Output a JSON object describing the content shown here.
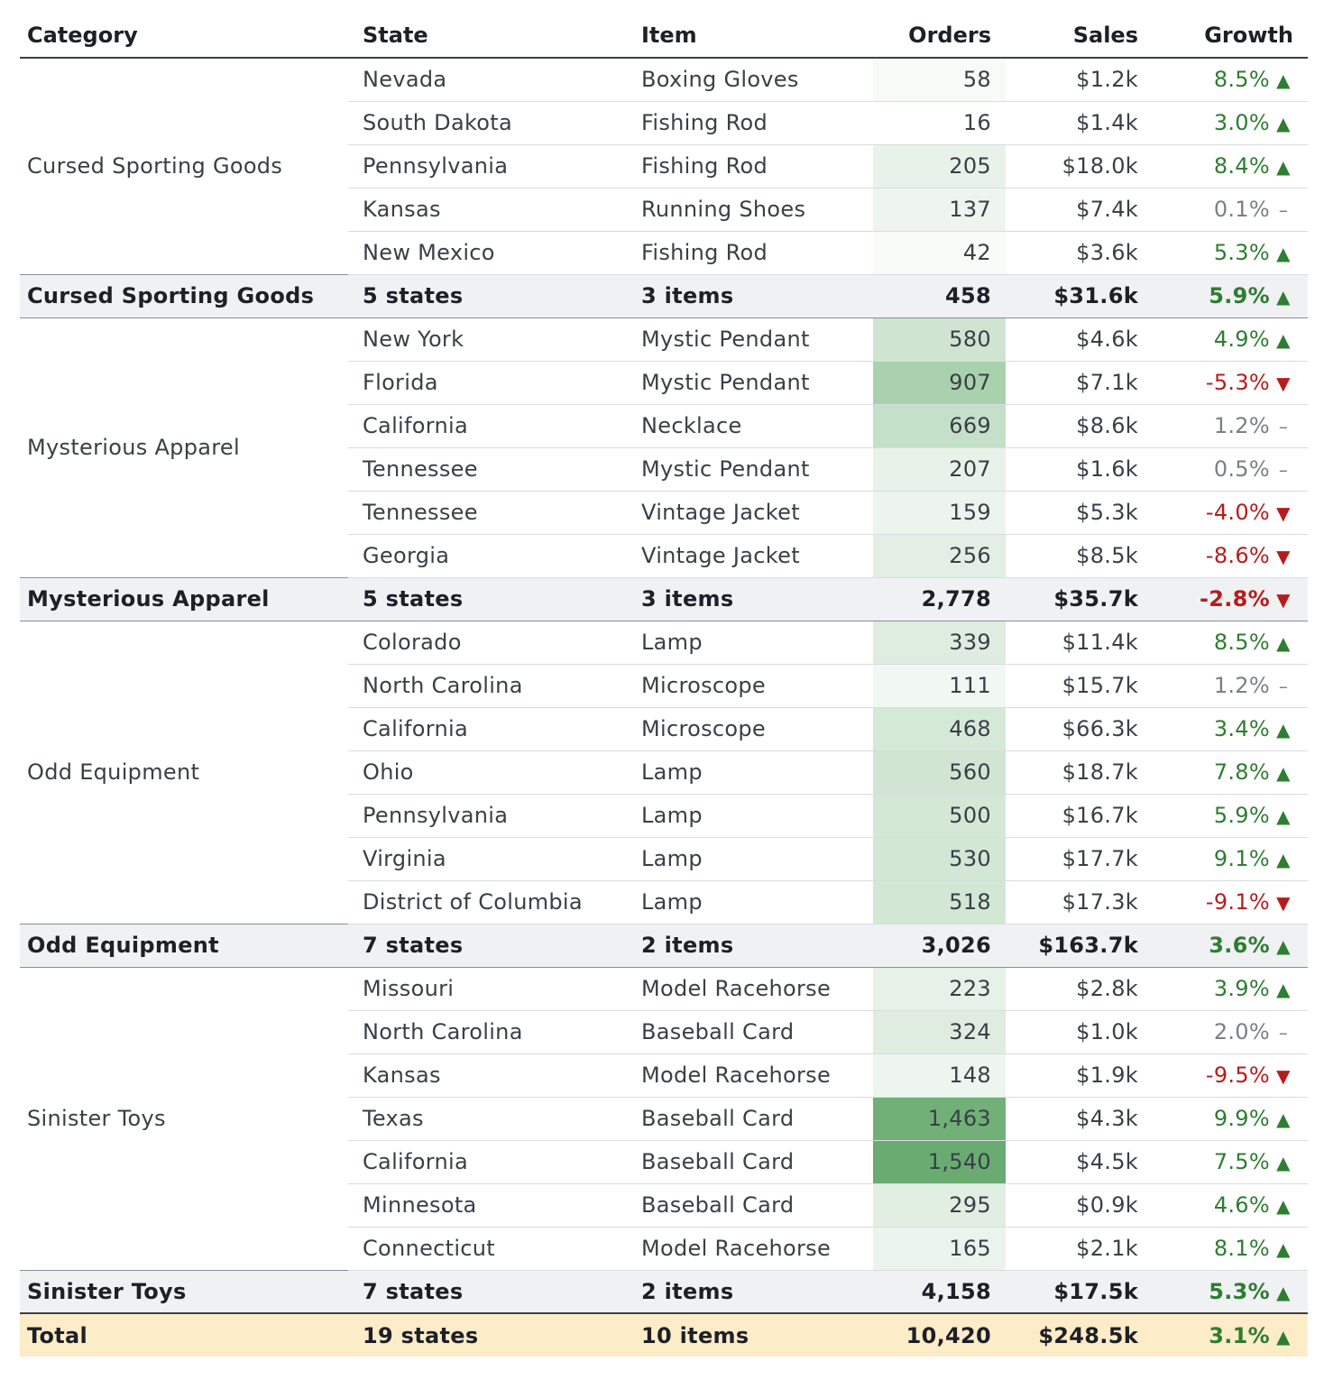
{
  "headers": {
    "category": "Category",
    "state": "State",
    "item": "Item",
    "orders": "Orders",
    "sales": "Sales",
    "growth": "Growth"
  },
  "groups": [
    {
      "category": "Cursed Sporting Goods",
      "rows": [
        {
          "state": "Nevada",
          "item": "Boxing Gloves",
          "orders": "58",
          "sales": "$1.2k",
          "growth": "8.5%",
          "trend": "up",
          "shade": "#f7faf7"
        },
        {
          "state": "South Dakota",
          "item": "Fishing Rod",
          "orders": "16",
          "sales": "$1.4k",
          "growth": "3.0%",
          "trend": "up",
          "shade": "#ffffff"
        },
        {
          "state": "Pennsylvania",
          "item": "Fishing Rod",
          "orders": "205",
          "sales": "$18.0k",
          "growth": "8.4%",
          "trend": "up",
          "shade": "#e8f2e9"
        },
        {
          "state": "Kansas",
          "item": "Running Shoes",
          "orders": "137",
          "sales": "$7.4k",
          "growth": "0.1%",
          "trend": "flat",
          "shade": "#eef5ef"
        },
        {
          "state": "New Mexico",
          "item": "Fishing Rod",
          "orders": "42",
          "sales": "$3.6k",
          "growth": "5.3%",
          "trend": "up",
          "shade": "#f8fbf8"
        }
      ],
      "subtotal": {
        "label": "Cursed Sporting Goods",
        "states": "5 states",
        "items": "3 items",
        "orders": "458",
        "sales": "$31.6k",
        "growth": "5.9%",
        "trend": "up"
      }
    },
    {
      "category": "Mysterious Apparel",
      "rows": [
        {
          "state": "New York",
          "item": "Mystic Pendant",
          "orders": "580",
          "sales": "$4.6k",
          "growth": "4.9%",
          "trend": "up",
          "shade": "#cfe5d1"
        },
        {
          "state": "Florida",
          "item": "Mystic Pendant",
          "orders": "907",
          "sales": "$7.1k",
          "growth": "-5.3%",
          "trend": "down",
          "shade": "#a9d1ae"
        },
        {
          "state": "California",
          "item": "Necklace",
          "orders": "669",
          "sales": "$8.6k",
          "growth": "1.2%",
          "trend": "flat",
          "shade": "#c5e0c8"
        },
        {
          "state": "Tennessee",
          "item": "Mystic Pendant",
          "orders": "207",
          "sales": "$1.6k",
          "growth": "0.5%",
          "trend": "flat",
          "shade": "#e8f2e9"
        },
        {
          "state": "Tennessee",
          "item": "Vintage Jacket",
          "orders": "159",
          "sales": "$5.3k",
          "growth": "-4.0%",
          "trend": "down",
          "shade": "#ecf4ed"
        },
        {
          "state": "Georgia",
          "item": "Vintage Jacket",
          "orders": "256",
          "sales": "$8.5k",
          "growth": "-8.6%",
          "trend": "down",
          "shade": "#e3efe4"
        }
      ],
      "subtotal": {
        "label": "Mysterious Apparel",
        "states": "5 states",
        "items": "3 items",
        "orders": "2,778",
        "sales": "$35.7k",
        "growth": "-2.8%",
        "trend": "down"
      }
    },
    {
      "category": "Odd Equipment",
      "rows": [
        {
          "state": "Colorado",
          "item": "Lamp",
          "orders": "339",
          "sales": "$11.4k",
          "growth": "8.5%",
          "trend": "up",
          "shade": "#deede0"
        },
        {
          "state": "North Carolina",
          "item": "Microscope",
          "orders": "111",
          "sales": "$15.7k",
          "growth": "1.2%",
          "trend": "flat",
          "shade": "#f1f7f2"
        },
        {
          "state": "California",
          "item": "Microscope",
          "orders": "468",
          "sales": "$66.3k",
          "growth": "3.4%",
          "trend": "up",
          "shade": "#d5e9d7"
        },
        {
          "state": "Ohio",
          "item": "Lamp",
          "orders": "560",
          "sales": "$18.7k",
          "growth": "7.8%",
          "trend": "up",
          "shade": "#d0e6d2"
        },
        {
          "state": "Pennsylvania",
          "item": "Lamp",
          "orders": "500",
          "sales": "$16.7k",
          "growth": "5.9%",
          "trend": "up",
          "shade": "#d3e8d5"
        },
        {
          "state": "Virginia",
          "item": "Lamp",
          "orders": "530",
          "sales": "$17.7k",
          "growth": "9.1%",
          "trend": "up",
          "shade": "#d2e7d4"
        },
        {
          "state": "District of Columbia",
          "item": "Lamp",
          "orders": "518",
          "sales": "$17.3k",
          "growth": "-9.1%",
          "trend": "down",
          "shade": "#d2e7d4"
        }
      ],
      "subtotal": {
        "label": "Odd Equipment",
        "states": "7 states",
        "items": "2 items",
        "orders": "3,026",
        "sales": "$163.7k",
        "growth": "3.6%",
        "trend": "up"
      }
    },
    {
      "category": "Sinister Toys",
      "rows": [
        {
          "state": "Missouri",
          "item": "Model Racehorse",
          "orders": "223",
          "sales": "$2.8k",
          "growth": "3.9%",
          "trend": "up",
          "shade": "#e6f1e7"
        },
        {
          "state": "North Carolina",
          "item": "Baseball Card",
          "orders": "324",
          "sales": "$1.0k",
          "growth": "2.0%",
          "trend": "flat",
          "shade": "#dfede1"
        },
        {
          "state": "Kansas",
          "item": "Model Racehorse",
          "orders": "148",
          "sales": "$1.9k",
          "growth": "-9.5%",
          "trend": "down",
          "shade": "#eef5ef"
        },
        {
          "state": "Texas",
          "item": "Baseball Card",
          "orders": "1,463",
          "sales": "$4.3k",
          "growth": "9.9%",
          "trend": "up",
          "shade": "#71b077"
        },
        {
          "state": "California",
          "item": "Baseball Card",
          "orders": "1,540",
          "sales": "$4.5k",
          "growth": "7.5%",
          "trend": "up",
          "shade": "#69ab70"
        },
        {
          "state": "Minnesota",
          "item": "Baseball Card",
          "orders": "295",
          "sales": "$0.9k",
          "growth": "4.6%",
          "trend": "up",
          "shade": "#e1eee2"
        },
        {
          "state": "Connecticut",
          "item": "Model Racehorse",
          "orders": "165",
          "sales": "$2.1k",
          "growth": "8.1%",
          "trend": "up",
          "shade": "#ebf4ec"
        }
      ],
      "subtotal": {
        "label": "Sinister Toys",
        "states": "7 states",
        "items": "2 items",
        "orders": "4,158",
        "sales": "$17.5k",
        "growth": "5.3%",
        "trend": "up"
      }
    }
  ],
  "total": {
    "label": "Total",
    "states": "19 states",
    "items": "10 items",
    "orders": "10,420",
    "sales": "$248.5k",
    "growth": "3.1%",
    "trend": "up"
  },
  "colors": {
    "up": "#2e7d32",
    "down": "#b71c1c",
    "flat": "#7a7f86",
    "total_bg": "#fdecc8",
    "subtotal_bg": "#f0f1f3"
  },
  "icons": {
    "up": "▲",
    "down": "▼",
    "flat": "–"
  }
}
